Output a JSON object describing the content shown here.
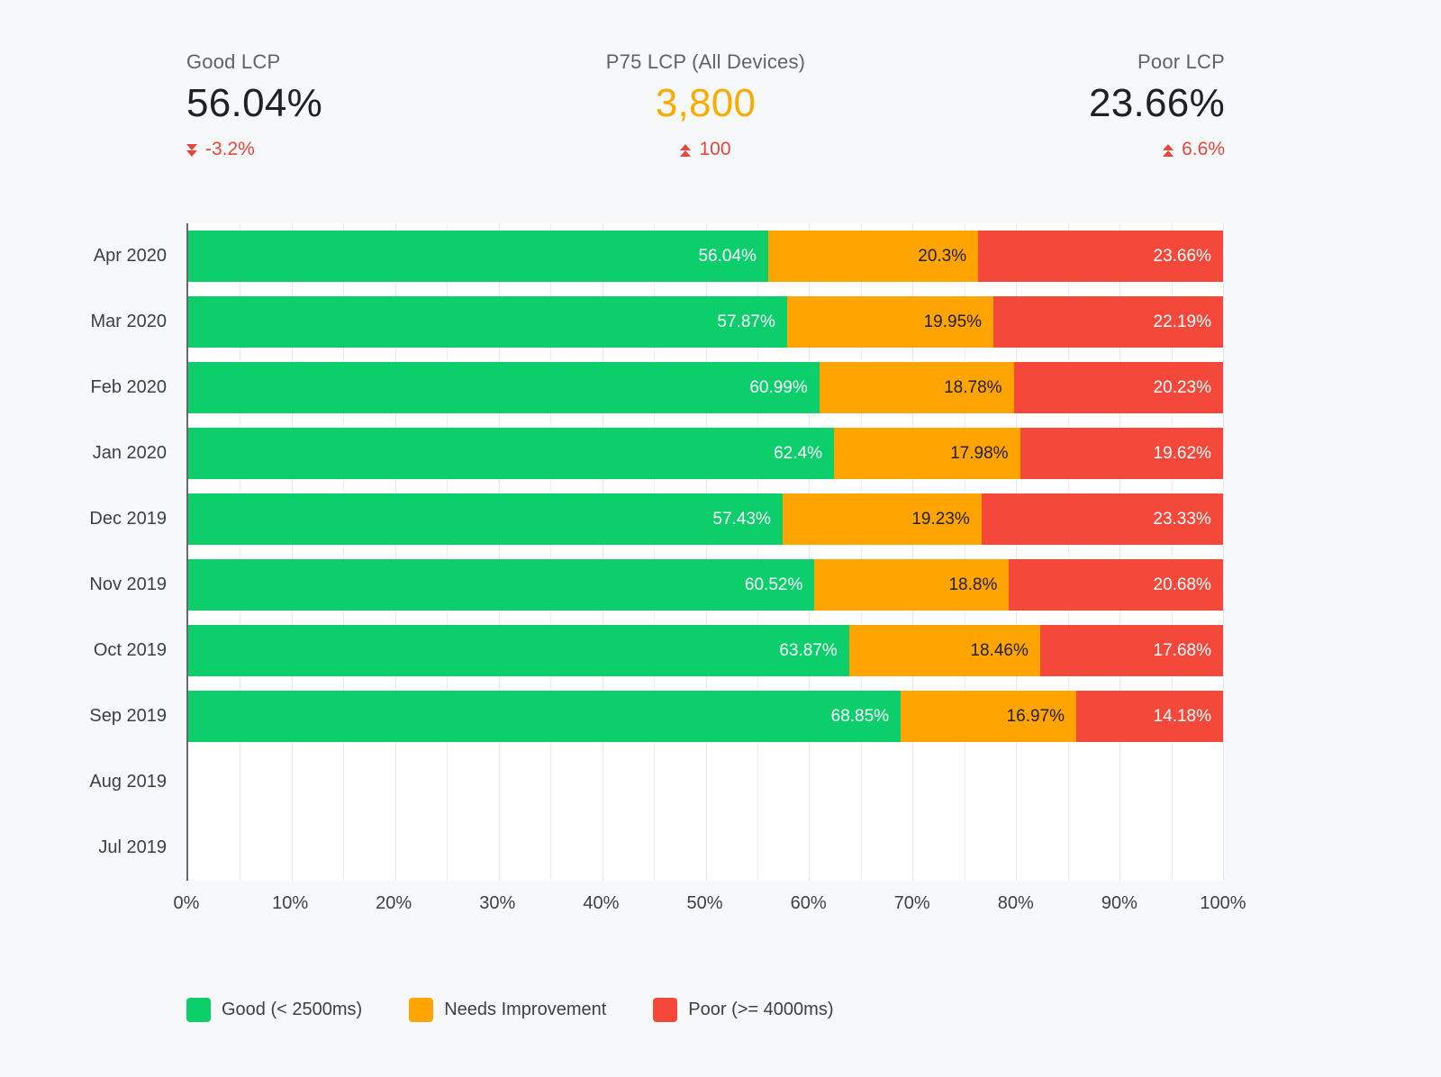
{
  "stats": [
    {
      "label": "Good LCP",
      "value": "56.04%",
      "delta": "-3.2%",
      "direction": "down"
    },
    {
      "label": "P75 LCP (All Devices)",
      "value": "3,800",
      "delta": "100",
      "direction": "up"
    },
    {
      "label": "Poor LCP",
      "value": "23.66%",
      "delta": "6.6%",
      "direction": "up"
    }
  ],
  "colors": {
    "good": "#0cce6b",
    "needs_improvement": "#ffa400",
    "poor": "#f4483b",
    "delta_red": "#e8453c",
    "p75_orange": "#f9ab00"
  },
  "chart_data": {
    "type": "bar",
    "stacked": true,
    "orientation": "horizontal",
    "categories": [
      "Apr 2020",
      "Mar 2020",
      "Feb 2020",
      "Jan 2020",
      "Dec 2019",
      "Nov 2019",
      "Oct 2019",
      "Sep 2019",
      "Aug 2019",
      "Jul 2019"
    ],
    "series": [
      {
        "name": "Good (< 2500ms)",
        "color": "#0cce6b",
        "label_color": "#ffffff",
        "values": [
          56.04,
          57.87,
          60.99,
          62.4,
          57.43,
          60.52,
          63.87,
          68.85,
          null,
          null
        ]
      },
      {
        "name": "Needs Improvement",
        "color": "#ffa400",
        "label_color": "#202124",
        "values": [
          20.3,
          19.95,
          18.78,
          17.98,
          19.23,
          18.8,
          18.46,
          16.97,
          null,
          null
        ]
      },
      {
        "name": "Poor (>= 4000ms)",
        "color": "#f4483b",
        "label_color": "#ffffff",
        "values": [
          23.66,
          22.19,
          20.23,
          19.62,
          23.33,
          20.68,
          17.68,
          14.18,
          null,
          null
        ]
      }
    ],
    "xticks": [
      "0%",
      "10%",
      "20%",
      "30%",
      "40%",
      "50%",
      "60%",
      "70%",
      "80%",
      "90%",
      "100%"
    ],
    "xlim": [
      0,
      100
    ],
    "grid": "vertical",
    "legend_position": "bottom"
  }
}
